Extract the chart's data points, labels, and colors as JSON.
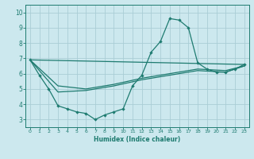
{
  "xlabel": "Humidex (Indice chaleur)",
  "bg_color": "#cce8ee",
  "grid_color": "#aacdd6",
  "line_color": "#1e7b70",
  "spine_color": "#1e7b70",
  "xlim": [
    -0.5,
    23.5
  ],
  "ylim": [
    2.5,
    10.5
  ],
  "xticks": [
    0,
    1,
    2,
    3,
    4,
    5,
    6,
    7,
    8,
    9,
    10,
    11,
    12,
    13,
    14,
    15,
    16,
    17,
    18,
    19,
    20,
    21,
    22,
    23
  ],
  "yticks": [
    3,
    4,
    5,
    6,
    7,
    8,
    9,
    10
  ],
  "series": [
    {
      "x": [
        0,
        1,
        2,
        3,
        4,
        5,
        6,
        7,
        8,
        9,
        10,
        11,
        12,
        13,
        14,
        15,
        16,
        17,
        18,
        19,
        20,
        21,
        22,
        23
      ],
      "y": [
        6.9,
        5.9,
        5.0,
        3.9,
        3.7,
        3.5,
        3.4,
        3.0,
        3.3,
        3.5,
        3.7,
        5.2,
        5.9,
        7.4,
        8.1,
        9.6,
        9.5,
        9.0,
        6.7,
        6.3,
        6.1,
        6.1,
        6.3,
        6.6
      ],
      "marker": true
    },
    {
      "x": [
        0,
        23
      ],
      "y": [
        6.9,
        6.6
      ],
      "marker": false
    },
    {
      "x": [
        0,
        3,
        6,
        9,
        12,
        15,
        18,
        21,
        23
      ],
      "y": [
        6.9,
        5.2,
        5.0,
        5.3,
        5.7,
        6.0,
        6.3,
        6.2,
        6.5
      ],
      "marker": false
    },
    {
      "x": [
        0,
        3,
        6,
        9,
        12,
        15,
        18,
        21,
        23
      ],
      "y": [
        6.9,
        4.8,
        4.9,
        5.2,
        5.6,
        5.9,
        6.2,
        6.1,
        6.5
      ],
      "marker": false
    }
  ]
}
